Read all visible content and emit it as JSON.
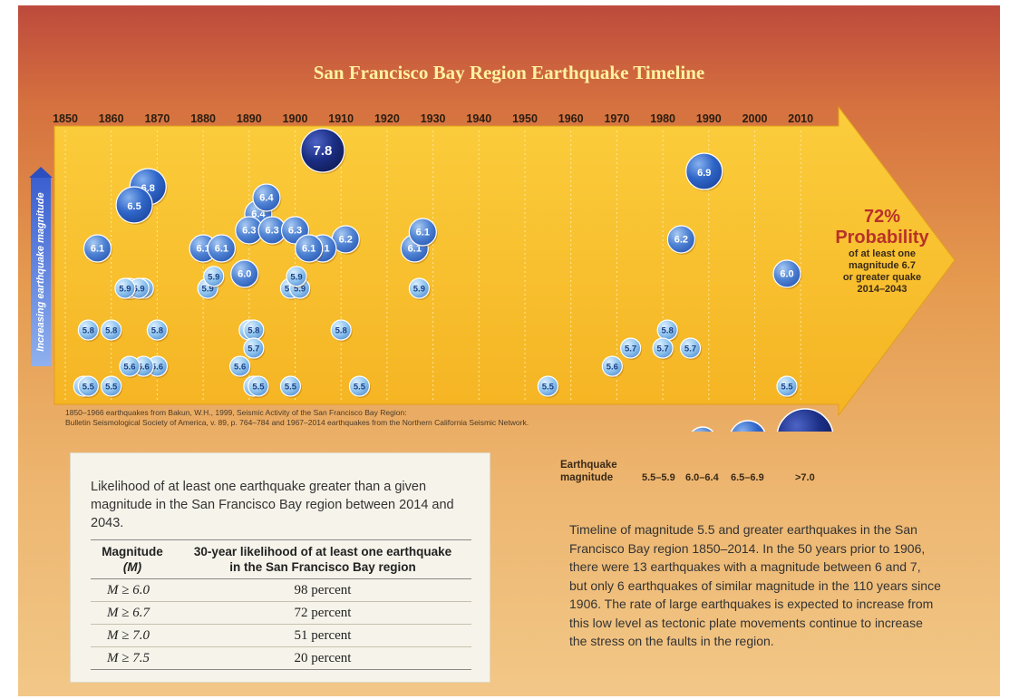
{
  "title": "San Francisco Bay Region Earthquake Timeline",
  "y_axis_label": "Increasing earthquake magnitude",
  "source_note": [
    "1850–1966 earthquakes from Bakun, W.H., 1999, Seismic Activity of the San Francisco Bay Region:",
    "Bulletin Seismological Society of America, v. 89, p. 764–784 and 1967–2014 earthquakes from the Northern California Seismic Network."
  ],
  "probability": {
    "percent": "72%",
    "word": "Probability",
    "lines": [
      "of at least one",
      "magnitude 6.7",
      "or greater quake",
      "2014–2043"
    ]
  },
  "legend": {
    "title_lines": [
      "Earthquake",
      "magnitude"
    ],
    "items": [
      {
        "range": "5.5–5.9",
        "class": "small"
      },
      {
        "range": "6.0–6.4",
        "class": "medium"
      },
      {
        "range": "6.5–6.9",
        "class": "large"
      },
      {
        "range": ">7.0",
        "class": "xlarge"
      }
    ]
  },
  "table": {
    "caption": "Likelihood of at least one earthquake greater than a given magnitude in the San Francisco Bay region between 2014 and 2043.",
    "header_col1": [
      "Magnitude",
      "(M)"
    ],
    "header_col2": [
      "30-year likelihood of at least one earthquake",
      "in the San Francisco Bay region"
    ],
    "rows": [
      {
        "magnitude": "M ≥ 6.0",
        "likelihood": "98 percent"
      },
      {
        "magnitude": "M ≥ 6.7",
        "likelihood": "72 percent"
      },
      {
        "magnitude": "M ≥ 7.0",
        "likelihood": "51 percent"
      },
      {
        "magnitude": "M ≥ 7.5",
        "likelihood": "20 percent"
      }
    ]
  },
  "description": "Timeline of magnitude 5.5 and greater earthquakes in the San Francisco Bay region 1850–2014. In the 50 years prior to 1906, there were 13 earthquakes with a magnitude between 6 and 7, but only 6 earthquakes of similar magnitude in the 110 years since 1906. The rate of large earthquakes is expected to increase from this low level as tectonic plate movements continue to increase the stress on the faults in the region.",
  "colors": {
    "small": "#8ec4ee",
    "medium": "#4f83d4",
    "large": "#2f66c8",
    "xlarge": "#1c2f86",
    "arrow": "#f9bf2c",
    "probability": "#b8312a"
  },
  "chart_data": {
    "type": "scatter",
    "title": "San Francisco Bay Region Earthquake Timeline",
    "xlabel": "",
    "ylabel": "Increasing earthquake magnitude",
    "x_ticks": [
      1850,
      1860,
      1870,
      1880,
      1890,
      1900,
      1910,
      1920,
      1930,
      1940,
      1950,
      1960,
      1970,
      1980,
      1990,
      2000,
      2010
    ],
    "xlim": [
      1850,
      2014
    ],
    "ylim": [
      5.5,
      7.8
    ],
    "points": [
      {
        "year": 1906,
        "magnitude": 7.8
      },
      {
        "year": 1989,
        "magnitude": 6.9
      },
      {
        "year": 1868,
        "magnitude": 6.8
      },
      {
        "year": 1865,
        "magnitude": 6.5
      },
      {
        "year": 1892,
        "magnitude": 6.4
      },
      {
        "year": 1892,
        "magnitude": 6.4
      },
      {
        "year": 1890,
        "magnitude": 6.3
      },
      {
        "year": 1895,
        "magnitude": 6.3
      },
      {
        "year": 1900,
        "magnitude": 6.3
      },
      {
        "year": 1911,
        "magnitude": 6.2
      },
      {
        "year": 1984,
        "magnitude": 6.2
      },
      {
        "year": 1857,
        "magnitude": 6.1
      },
      {
        "year": 1880,
        "magnitude": 6.1
      },
      {
        "year": 1884,
        "magnitude": 6.1
      },
      {
        "year": 1906,
        "magnitude": 6.1
      },
      {
        "year": 1903,
        "magnitude": 6.1
      },
      {
        "year": 1926,
        "magnitude": 6.1
      },
      {
        "year": 1926,
        "magnitude": 6.1
      },
      {
        "year": 1889,
        "magnitude": 6.0
      },
      {
        "year": 2007,
        "magnitude": 6.0
      },
      {
        "year": 1867,
        "magnitude": 5.9
      },
      {
        "year": 1864,
        "magnitude": 5.9
      },
      {
        "year": 1866,
        "magnitude": 5.9
      },
      {
        "year": 1863,
        "magnitude": 5.9
      },
      {
        "year": 1881,
        "magnitude": 5.9
      },
      {
        "year": 1881,
        "magnitude": 5.9
      },
      {
        "year": 1899,
        "magnitude": 5.9
      },
      {
        "year": 1901,
        "magnitude": 5.9
      },
      {
        "year": 1899,
        "magnitude": 5.9
      },
      {
        "year": 1927,
        "magnitude": 5.9
      },
      {
        "year": 1855,
        "magnitude": 5.8
      },
      {
        "year": 1860,
        "magnitude": 5.8
      },
      {
        "year": 1870,
        "magnitude": 5.8
      },
      {
        "year": 1890,
        "magnitude": 5.8
      },
      {
        "year": 1891,
        "magnitude": 5.8
      },
      {
        "year": 1910,
        "magnitude": 5.8
      },
      {
        "year": 1981,
        "magnitude": 5.8
      },
      {
        "year": 1891,
        "magnitude": 5.7
      },
      {
        "year": 1973,
        "magnitude": 5.7
      },
      {
        "year": 1980,
        "magnitude": 5.7
      },
      {
        "year": 1986,
        "magnitude": 5.7
      },
      {
        "year": 1870,
        "magnitude": 5.6
      },
      {
        "year": 1867,
        "magnitude": 5.6
      },
      {
        "year": 1864,
        "magnitude": 5.6
      },
      {
        "year": 1888,
        "magnitude": 5.6
      },
      {
        "year": 1969,
        "magnitude": 5.6
      },
      {
        "year": 1854,
        "magnitude": 5.5
      },
      {
        "year": 1891,
        "magnitude": 5.5
      },
      {
        "year": 1855,
        "magnitude": 5.5
      },
      {
        "year": 1860,
        "magnitude": 5.5
      },
      {
        "year": 1892,
        "magnitude": 5.5
      },
      {
        "year": 1899,
        "magnitude": 5.5
      },
      {
        "year": 1914,
        "magnitude": 5.5
      },
      {
        "year": 1955,
        "magnitude": 5.5
      },
      {
        "year": 2007,
        "magnitude": 5.5
      }
    ]
  }
}
